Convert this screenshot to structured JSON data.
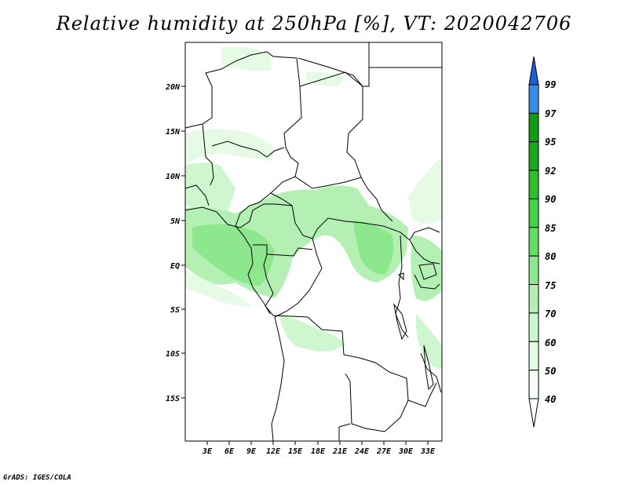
{
  "title": "Relative humidity at 250hPa [%], VT: 2020042706",
  "credit": "GrADS: IGES/COLA",
  "map": {
    "lat_labels": [
      "20N",
      "15N",
      "10N",
      "5N",
      "EQ",
      "5S",
      "10S",
      "15S"
    ],
    "lon_labels": [
      "3E",
      "6E",
      "9E",
      "12E",
      "15E",
      "18E",
      "21E",
      "24E",
      "27E",
      "30E",
      "33E"
    ]
  },
  "colorbar": {
    "labels": [
      "99",
      "97",
      "95",
      "92",
      "90",
      "85",
      "80",
      "75",
      "70",
      "60",
      "50",
      "40"
    ],
    "colors": {
      "99": "#1a5fd6",
      "97": "#3a8ce8",
      "95": "#129a12",
      "92": "#1fa81f",
      "90": "#2fbf2f",
      "85": "#48d048",
      "80": "#66de66",
      "75": "#8de88d",
      "70": "#b4f0b4",
      "60": "#cff7cf",
      "50": "#e6fbe6",
      "40": "#f6fef6"
    }
  }
}
